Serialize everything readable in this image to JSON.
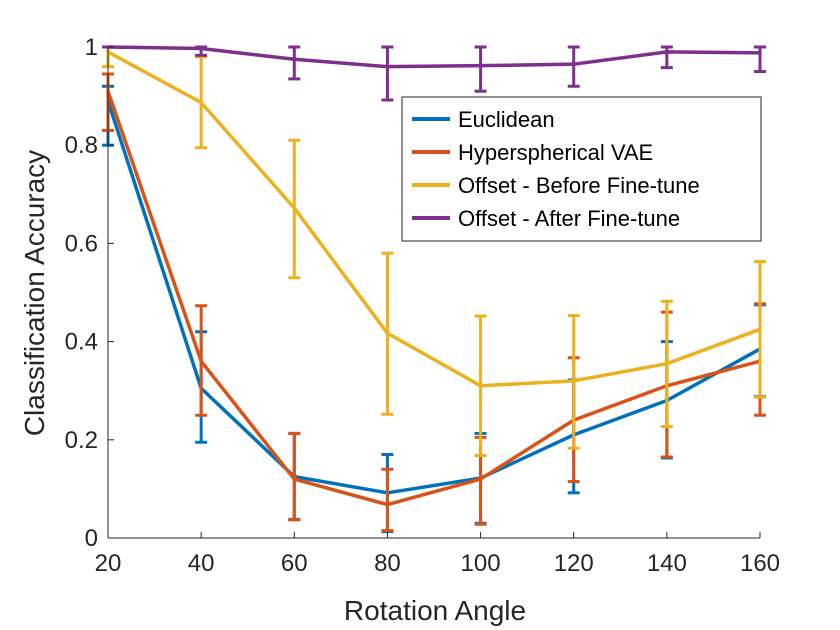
{
  "chart_data": {
    "type": "line",
    "title": "",
    "xlabel": "Rotation Angle",
    "ylabel": "Classification Accuracy",
    "xlim": [
      20,
      160
    ],
    "ylim": [
      0,
      1
    ],
    "x": [
      20,
      40,
      60,
      80,
      100,
      120,
      140,
      160
    ],
    "xticks": [
      20,
      40,
      60,
      80,
      100,
      120,
      140,
      160
    ],
    "yticks": [
      0,
      0.2,
      0.4,
      0.6,
      0.8,
      1
    ],
    "ytick_labels": [
      "0",
      "0.2",
      "0.4",
      "0.6",
      "0.8",
      "1"
    ],
    "grid": false,
    "legend_position": "top-right",
    "series": [
      {
        "name": "Euclidean",
        "color": "#0072BD",
        "values": [
          0.89,
          0.305,
          0.125,
          0.092,
          0.122,
          0.21,
          0.28,
          0.385
        ],
        "err_low": [
          0.8,
          0.195,
          0.038,
          0.013,
          0.03,
          0.092,
          0.163,
          0.288
        ],
        "err_high": [
          0.92,
          0.42,
          0.213,
          0.17,
          0.213,
          0.322,
          0.4,
          0.475
        ]
      },
      {
        "name": "Hyperspherical VAE",
        "color": "#D95319",
        "values": [
          0.91,
          0.36,
          0.12,
          0.068,
          0.12,
          0.24,
          0.31,
          0.36
        ],
        "err_low": [
          0.83,
          0.25,
          0.037,
          0.015,
          0.028,
          0.115,
          0.165,
          0.25
        ],
        "err_high": [
          0.945,
          0.473,
          0.213,
          0.14,
          0.205,
          0.367,
          0.46,
          0.477
        ]
      },
      {
        "name": "Offset - Before Fine-tune",
        "color": "#EDB120",
        "values": [
          0.99,
          0.887,
          0.672,
          0.417,
          0.31,
          0.32,
          0.355,
          0.425
        ],
        "err_low": [
          0.96,
          0.795,
          0.53,
          0.252,
          0.168,
          0.183,
          0.227,
          0.287
        ],
        "err_high": [
          1.0,
          0.98,
          0.81,
          0.58,
          0.452,
          0.453,
          0.482,
          0.563
        ]
      },
      {
        "name": "Offset - After Fine-tune",
        "color": "#7E2F8E",
        "values": [
          1.0,
          0.997,
          0.975,
          0.96,
          0.962,
          0.965,
          0.99,
          0.988
        ],
        "err_low": [
          1.0,
          0.983,
          0.935,
          0.892,
          0.91,
          0.92,
          0.958,
          0.95
        ],
        "err_high": [
          1.0,
          1.0,
          1.0,
          1.0,
          1.0,
          1.0,
          1.0,
          1.0
        ]
      }
    ]
  }
}
